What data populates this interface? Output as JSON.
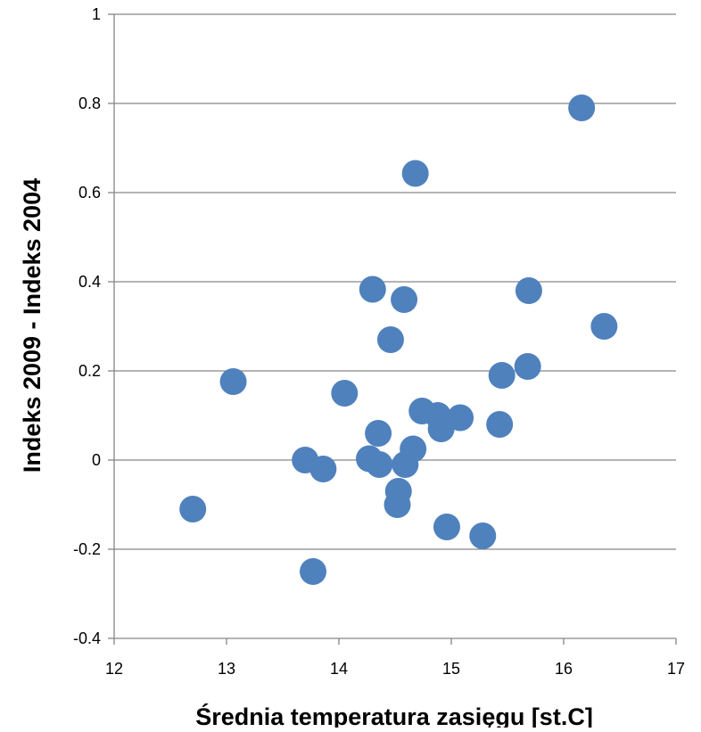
{
  "chart_data": {
    "type": "scatter",
    "title": "",
    "xlabel": "Średnia temperatura zasięgu [st.C]",
    "ylabel": "Indeks 2009 - Indeks 2004",
    "xlim": [
      12,
      17
    ],
    "ylim": [
      -0.4,
      1
    ],
    "x_ticks": [
      12,
      13,
      14,
      15,
      16,
      17
    ],
    "x_tick_labels": [
      "12",
      "13",
      "14",
      "15",
      "16",
      "17"
    ],
    "y_ticks": [
      -0.4,
      -0.2,
      0,
      0.2,
      0.4,
      0.6,
      0.8,
      1
    ],
    "y_tick_labels": [
      "-0.4",
      "-0.2",
      "0",
      "0.2",
      "0.4",
      "0.6",
      "0.8",
      "1"
    ],
    "grid": "horizontal",
    "legend": "none",
    "marker_color": "#4f81bd",
    "gridline_color": "#868686",
    "series": [
      {
        "points": [
          {
            "x": 12.7,
            "y": -0.11
          },
          {
            "x": 13.06,
            "y": 0.176
          },
          {
            "x": 13.7,
            "y": 0.0
          },
          {
            "x": 13.77,
            "y": -0.25
          },
          {
            "x": 13.86,
            "y": -0.02
          },
          {
            "x": 14.05,
            "y": 0.15
          },
          {
            "x": 14.27,
            "y": 0.003
          },
          {
            "x": 14.3,
            "y": 0.383
          },
          {
            "x": 14.35,
            "y": 0.06
          },
          {
            "x": 14.36,
            "y": -0.01
          },
          {
            "x": 14.46,
            "y": 0.27
          },
          {
            "x": 14.52,
            "y": -0.1
          },
          {
            "x": 14.53,
            "y": -0.07
          },
          {
            "x": 14.58,
            "y": 0.36
          },
          {
            "x": 14.59,
            "y": -0.01
          },
          {
            "x": 14.66,
            "y": 0.025
          },
          {
            "x": 14.68,
            "y": 0.643
          },
          {
            "x": 14.74,
            "y": 0.11
          },
          {
            "x": 14.88,
            "y": 0.1
          },
          {
            "x": 14.91,
            "y": 0.07
          },
          {
            "x": 14.96,
            "y": -0.15
          },
          {
            "x": 15.08,
            "y": 0.095
          },
          {
            "x": 15.28,
            "y": -0.17
          },
          {
            "x": 15.43,
            "y": 0.08
          },
          {
            "x": 15.45,
            "y": 0.19
          },
          {
            "x": 15.68,
            "y": 0.21
          },
          {
            "x": 15.69,
            "y": 0.38
          },
          {
            "x": 16.16,
            "y": 0.79
          },
          {
            "x": 16.36,
            "y": 0.3
          }
        ]
      }
    ]
  }
}
